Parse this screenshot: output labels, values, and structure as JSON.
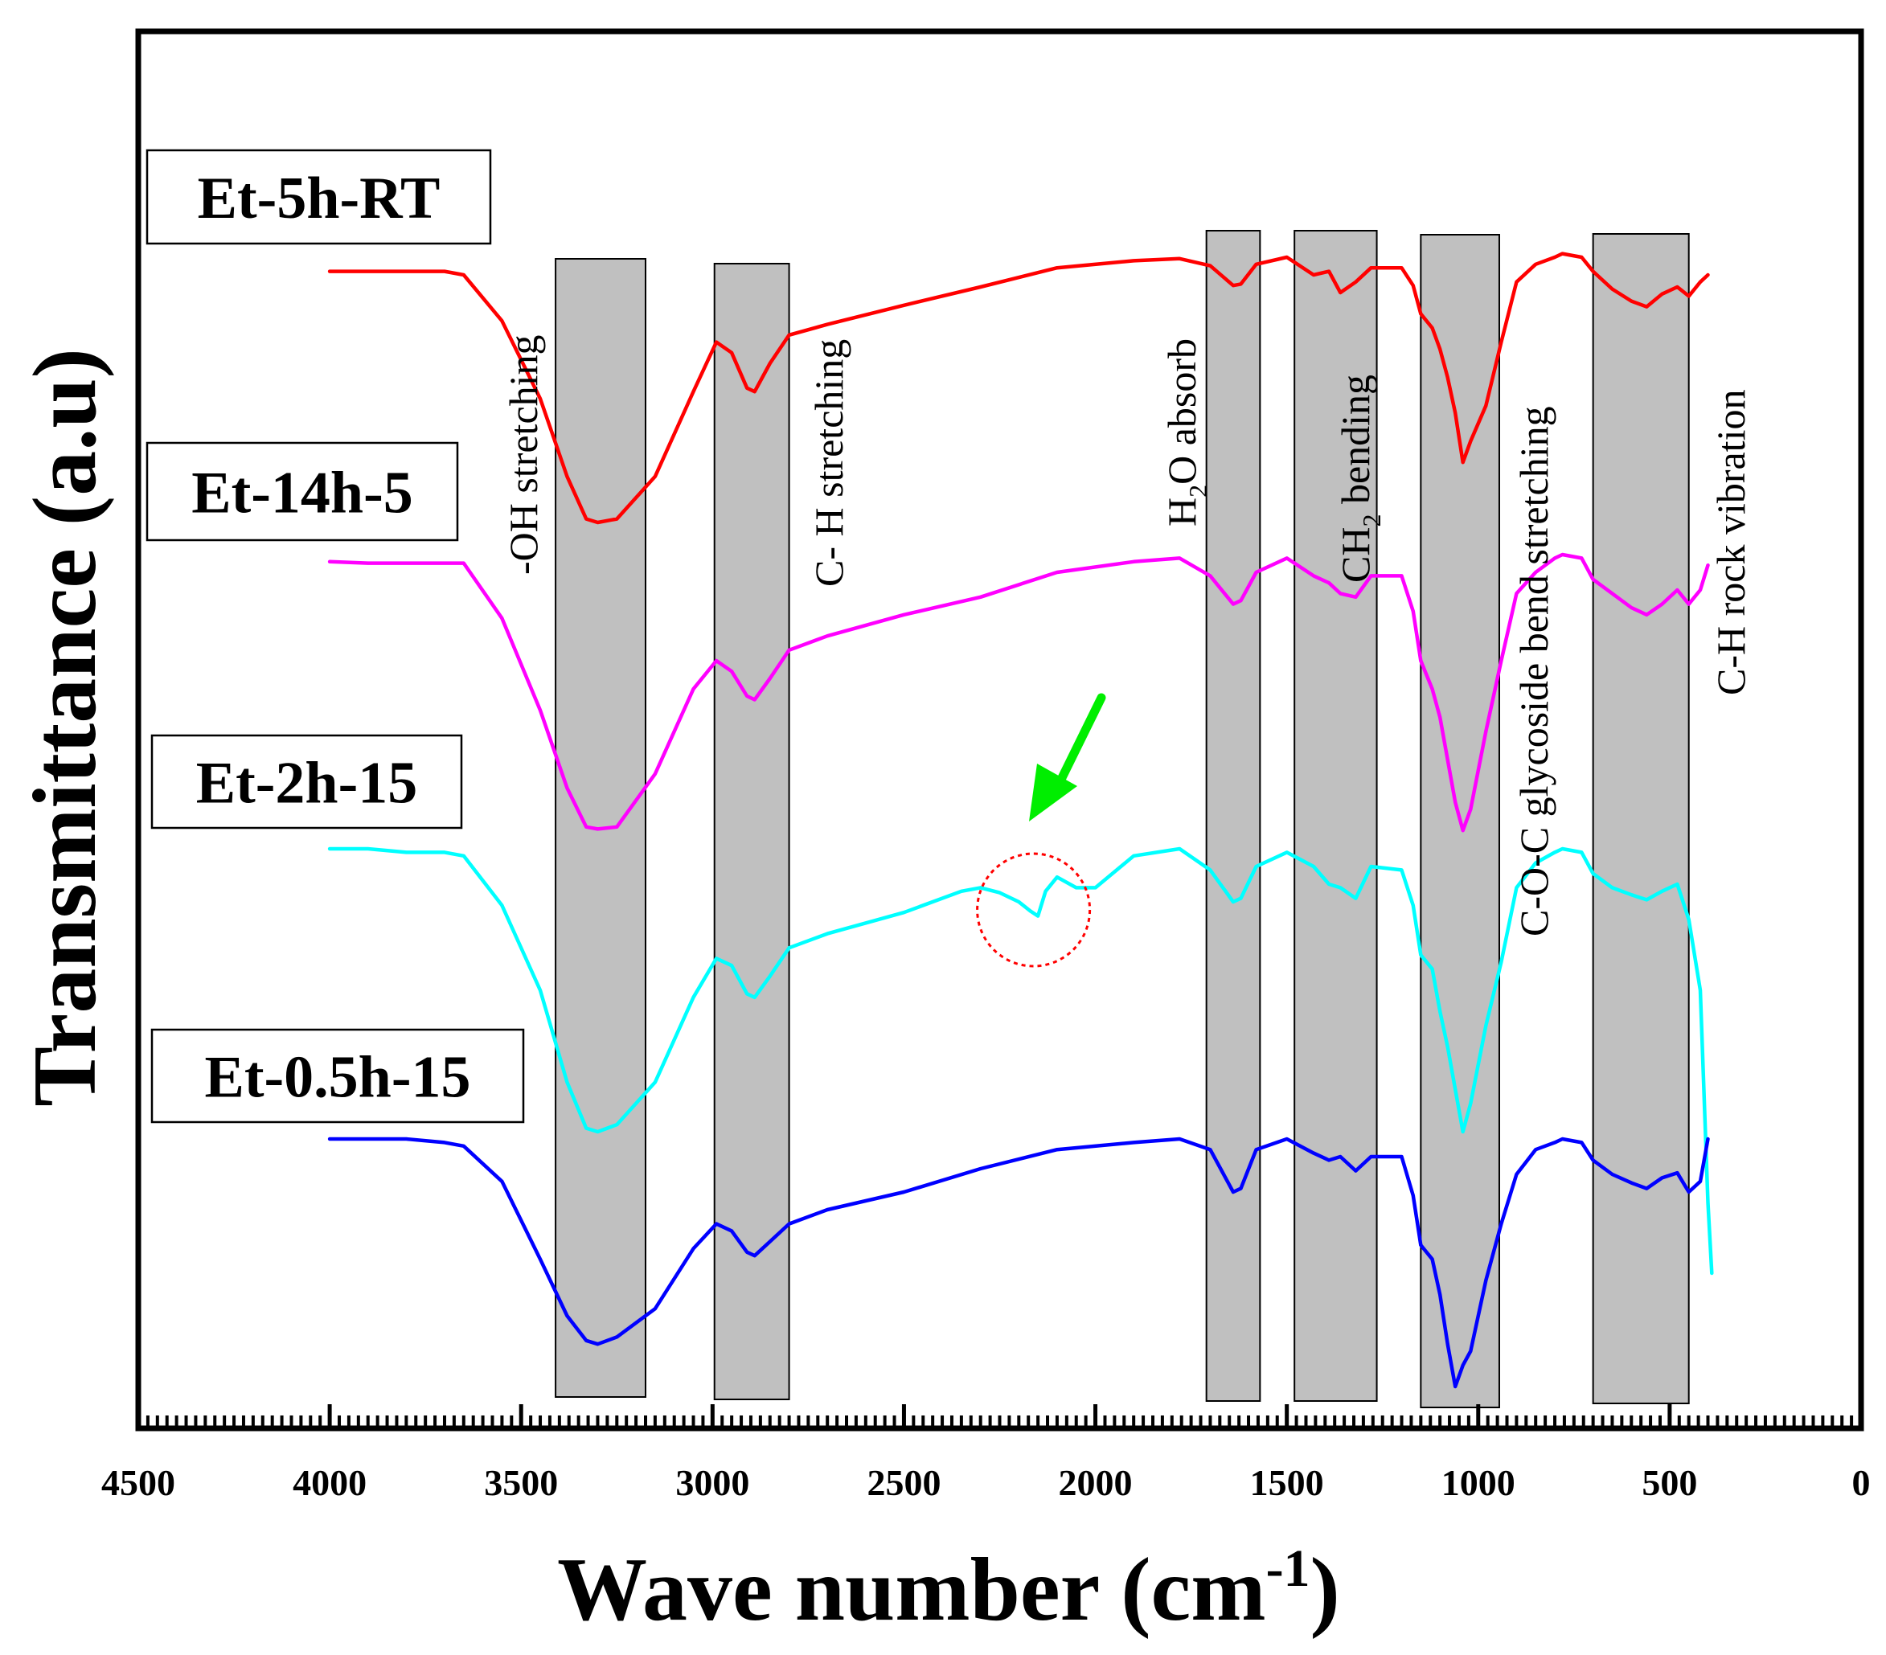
{
  "chart_data": {
    "type": "line",
    "title": "",
    "xlabel": "Wave number (cm",
    "xlabel_sup": "-1",
    "xlabel_close": ")",
    "ylabel": "Transmittance (a.u)",
    "xlim": [
      4500,
      0
    ],
    "x_reversed": true,
    "grid": false,
    "x_ticks": [
      4500,
      4000,
      3500,
      3000,
      2500,
      2000,
      1500,
      1000,
      500,
      0
    ],
    "x_tick_labels": [
      "4500",
      "4000",
      "3500",
      "3000",
      "2500",
      "2000",
      "1500",
      "1000",
      "500",
      "0"
    ],
    "bands": [
      {
        "from": 3410,
        "to": 3175,
        "label": "-OH stretching"
      },
      {
        "from": 2995,
        "to": 2800,
        "label": "C- H stretching"
      },
      {
        "from": 1710,
        "to": 1570,
        "label_main": "H",
        "label_sub": "2",
        "label_rest": "O absorb"
      },
      {
        "from": 1480,
        "to": 1265,
        "label_main": "CH",
        "label_sub": "2",
        "label_rest": " bending"
      },
      {
        "from": 1150,
        "to": 945,
        "label": "C-O-C glycoside bend stretching"
      },
      {
        "from": 700,
        "to": 450,
        "label": "C-H rock vibration"
      }
    ],
    "series": [
      {
        "name": "Et-5h-RT",
        "color": "#ff0000",
        "points": [
          [
            4000,
            0.2
          ],
          [
            3900,
            0.2
          ],
          [
            3800,
            0.2
          ],
          [
            3700,
            0.2
          ],
          [
            3650,
            0.25
          ],
          [
            3550,
            0.9
          ],
          [
            3450,
            2.0
          ],
          [
            3380,
            3.1
          ],
          [
            3330,
            3.7
          ],
          [
            3300,
            3.75
          ],
          [
            3250,
            3.7
          ],
          [
            3150,
            3.1
          ],
          [
            3050,
            1.9
          ],
          [
            2990,
            1.2
          ],
          [
            2950,
            1.35
          ],
          [
            2910,
            1.85
          ],
          [
            2890,
            1.9
          ],
          [
            2850,
            1.5
          ],
          [
            2800,
            1.1
          ],
          [
            2700,
            0.95
          ],
          [
            2500,
            0.68
          ],
          [
            2300,
            0.42
          ],
          [
            2100,
            0.15
          ],
          [
            1900,
            0.05
          ],
          [
            1780,
            0.02
          ],
          [
            1700,
            0.12
          ],
          [
            1640,
            0.4
          ],
          [
            1620,
            0.38
          ],
          [
            1580,
            0.1
          ],
          [
            1500,
            0.0
          ],
          [
            1430,
            0.25
          ],
          [
            1390,
            0.2
          ],
          [
            1360,
            0.5
          ],
          [
            1320,
            0.35
          ],
          [
            1280,
            0.15
          ],
          [
            1200,
            0.15
          ],
          [
            1170,
            0.4
          ],
          [
            1150,
            0.8
          ],
          [
            1120,
            1.0
          ],
          [
            1100,
            1.3
          ],
          [
            1080,
            1.7
          ],
          [
            1060,
            2.2
          ],
          [
            1040,
            2.9
          ],
          [
            1020,
            2.6
          ],
          [
            980,
            2.1
          ],
          [
            940,
            1.2
          ],
          [
            900,
            0.35
          ],
          [
            850,
            0.1
          ],
          [
            800,
            0.0
          ],
          [
            780,
            -0.05
          ],
          [
            730,
            0.0
          ],
          [
            700,
            0.2
          ],
          [
            650,
            0.45
          ],
          [
            600,
            0.62
          ],
          [
            560,
            0.7
          ],
          [
            520,
            0.52
          ],
          [
            480,
            0.42
          ],
          [
            450,
            0.55
          ],
          [
            420,
            0.35
          ],
          [
            400,
            0.25
          ]
        ]
      },
      {
        "name": "Et-14h-5",
        "color": "#ff00ff",
        "points": [
          [
            4000,
            0.1
          ],
          [
            3900,
            0.12
          ],
          [
            3800,
            0.12
          ],
          [
            3700,
            0.12
          ],
          [
            3650,
            0.12
          ],
          [
            3550,
            0.9
          ],
          [
            3450,
            2.2
          ],
          [
            3380,
            3.3
          ],
          [
            3330,
            3.85
          ],
          [
            3300,
            3.88
          ],
          [
            3250,
            3.85
          ],
          [
            3150,
            3.1
          ],
          [
            3050,
            1.9
          ],
          [
            2990,
            1.5
          ],
          [
            2950,
            1.65
          ],
          [
            2910,
            2.0
          ],
          [
            2890,
            2.05
          ],
          [
            2850,
            1.75
          ],
          [
            2800,
            1.35
          ],
          [
            2700,
            1.15
          ],
          [
            2500,
            0.85
          ],
          [
            2300,
            0.6
          ],
          [
            2100,
            0.25
          ],
          [
            1900,
            0.1
          ],
          [
            1780,
            0.05
          ],
          [
            1700,
            0.3
          ],
          [
            1640,
            0.7
          ],
          [
            1620,
            0.65
          ],
          [
            1580,
            0.25
          ],
          [
            1500,
            0.05
          ],
          [
            1430,
            0.3
          ],
          [
            1390,
            0.4
          ],
          [
            1360,
            0.55
          ],
          [
            1320,
            0.6
          ],
          [
            1280,
            0.3
          ],
          [
            1200,
            0.3
          ],
          [
            1170,
            0.8
          ],
          [
            1150,
            1.5
          ],
          [
            1120,
            1.9
          ],
          [
            1100,
            2.3
          ],
          [
            1080,
            2.9
          ],
          [
            1060,
            3.5
          ],
          [
            1040,
            3.9
          ],
          [
            1020,
            3.6
          ],
          [
            980,
            2.5
          ],
          [
            940,
            1.5
          ],
          [
            900,
            0.55
          ],
          [
            850,
            0.25
          ],
          [
            800,
            0.05
          ],
          [
            780,
            0.0
          ],
          [
            730,
            0.05
          ],
          [
            700,
            0.35
          ],
          [
            650,
            0.55
          ],
          [
            600,
            0.75
          ],
          [
            560,
            0.85
          ],
          [
            520,
            0.7
          ],
          [
            480,
            0.5
          ],
          [
            450,
            0.7
          ],
          [
            420,
            0.5
          ],
          [
            400,
            0.15
          ]
        ]
      },
      {
        "name": "Et-2h-15",
        "color": "#00ffff",
        "points": [
          [
            4000,
            0.0
          ],
          [
            3900,
            0.0
          ],
          [
            3800,
            0.05
          ],
          [
            3700,
            0.05
          ],
          [
            3650,
            0.1
          ],
          [
            3550,
            0.8
          ],
          [
            3450,
            2.0
          ],
          [
            3380,
            3.3
          ],
          [
            3330,
            3.95
          ],
          [
            3300,
            4.0
          ],
          [
            3250,
            3.9
          ],
          [
            3150,
            3.3
          ],
          [
            3050,
            2.1
          ],
          [
            2990,
            1.55
          ],
          [
            2950,
            1.65
          ],
          [
            2910,
            2.05
          ],
          [
            2890,
            2.1
          ],
          [
            2850,
            1.8
          ],
          [
            2800,
            1.4
          ],
          [
            2700,
            1.2
          ],
          [
            2500,
            0.9
          ],
          [
            2350,
            0.6
          ],
          [
            2300,
            0.55
          ],
          [
            2250,
            0.62
          ],
          [
            2200,
            0.75
          ],
          [
            2170,
            0.88
          ],
          [
            2150,
            0.95
          ],
          [
            2130,
            0.6
          ],
          [
            2100,
            0.4
          ],
          [
            2050,
            0.55
          ],
          [
            2000,
            0.55
          ],
          [
            1900,
            0.1
          ],
          [
            1780,
            0.0
          ],
          [
            1700,
            0.3
          ],
          [
            1640,
            0.75
          ],
          [
            1620,
            0.7
          ],
          [
            1580,
            0.25
          ],
          [
            1500,
            0.05
          ],
          [
            1430,
            0.25
          ],
          [
            1390,
            0.5
          ],
          [
            1360,
            0.55
          ],
          [
            1320,
            0.7
          ],
          [
            1280,
            0.25
          ],
          [
            1200,
            0.3
          ],
          [
            1170,
            0.8
          ],
          [
            1150,
            1.5
          ],
          [
            1120,
            1.7
          ],
          [
            1100,
            2.3
          ],
          [
            1080,
            2.8
          ],
          [
            1060,
            3.4
          ],
          [
            1040,
            4.0
          ],
          [
            1020,
            3.6
          ],
          [
            980,
            2.5
          ],
          [
            940,
            1.6
          ],
          [
            900,
            0.55
          ],
          [
            850,
            0.2
          ],
          [
            800,
            0.05
          ],
          [
            780,
            0.0
          ],
          [
            730,
            0.05
          ],
          [
            700,
            0.35
          ],
          [
            650,
            0.55
          ],
          [
            600,
            0.65
          ],
          [
            560,
            0.72
          ],
          [
            520,
            0.6
          ],
          [
            480,
            0.5
          ],
          [
            450,
            1.0
          ],
          [
            420,
            2.0
          ],
          [
            400,
            5.0
          ],
          [
            390,
            6.0
          ]
        ]
      },
      {
        "name": "Et-0.5h-15",
        "color": "#0000ff",
        "points": [
          [
            4000,
            0.0
          ],
          [
            3900,
            0.0
          ],
          [
            3800,
            0.0
          ],
          [
            3700,
            0.05
          ],
          [
            3650,
            0.1
          ],
          [
            3550,
            0.6
          ],
          [
            3450,
            1.7
          ],
          [
            3380,
            2.5
          ],
          [
            3330,
            2.85
          ],
          [
            3300,
            2.9
          ],
          [
            3250,
            2.8
          ],
          [
            3150,
            2.4
          ],
          [
            3050,
            1.55
          ],
          [
            2990,
            1.2
          ],
          [
            2950,
            1.3
          ],
          [
            2910,
            1.6
          ],
          [
            2890,
            1.65
          ],
          [
            2850,
            1.45
          ],
          [
            2800,
            1.2
          ],
          [
            2700,
            1.0
          ],
          [
            2500,
            0.75
          ],
          [
            2300,
            0.42
          ],
          [
            2100,
            0.15
          ],
          [
            1900,
            0.05
          ],
          [
            1780,
            0.0
          ],
          [
            1700,
            0.15
          ],
          [
            1640,
            0.75
          ],
          [
            1620,
            0.7
          ],
          [
            1580,
            0.15
          ],
          [
            1500,
            0.0
          ],
          [
            1430,
            0.2
          ],
          [
            1390,
            0.3
          ],
          [
            1360,
            0.25
          ],
          [
            1320,
            0.45
          ],
          [
            1280,
            0.25
          ],
          [
            1200,
            0.25
          ],
          [
            1170,
            0.8
          ],
          [
            1150,
            1.5
          ],
          [
            1120,
            1.7
          ],
          [
            1100,
            2.2
          ],
          [
            1080,
            2.9
          ],
          [
            1060,
            3.5
          ],
          [
            1040,
            3.2
          ],
          [
            1020,
            3.0
          ],
          [
            980,
            2.0
          ],
          [
            940,
            1.2
          ],
          [
            900,
            0.5
          ],
          [
            850,
            0.15
          ],
          [
            800,
            0.05
          ],
          [
            780,
            0.0
          ],
          [
            730,
            0.05
          ],
          [
            700,
            0.3
          ],
          [
            650,
            0.5
          ],
          [
            600,
            0.62
          ],
          [
            560,
            0.7
          ],
          [
            520,
            0.55
          ],
          [
            480,
            0.48
          ],
          [
            450,
            0.75
          ],
          [
            420,
            0.6
          ],
          [
            400,
            0.0
          ]
        ]
      }
    ],
    "annotation": {
      "type": "circle-with-arrow",
      "x": 2170,
      "series": "Et-2h-15",
      "arrow_color": "#00ee00",
      "circle_color": "#ff0000"
    }
  }
}
